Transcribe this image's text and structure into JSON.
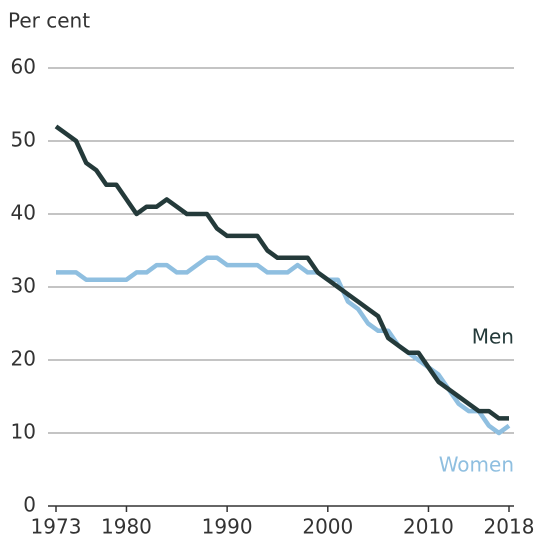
{
  "chart_data": {
    "type": "line",
    "y_label": "Per cent",
    "x": [
      1973,
      1974,
      1975,
      1976,
      1977,
      1978,
      1979,
      1980,
      1981,
      1982,
      1983,
      1984,
      1985,
      1986,
      1987,
      1988,
      1989,
      1990,
      1991,
      1992,
      1993,
      1994,
      1995,
      1996,
      1997,
      1998,
      1999,
      2000,
      2001,
      2002,
      2003,
      2004,
      2005,
      2006,
      2007,
      2008,
      2009,
      2010,
      2011,
      2012,
      2013,
      2014,
      2015,
      2016,
      2017,
      2018
    ],
    "series": [
      {
        "name": "Women",
        "color": "#8fbfe0",
        "values": [
          32,
          32,
          32,
          31,
          31,
          31,
          31,
          31,
          32,
          32,
          33,
          33,
          32,
          32,
          33,
          34,
          34,
          33,
          33,
          33,
          33,
          32,
          32,
          32,
          33,
          32,
          32,
          31,
          31,
          28,
          27,
          25,
          24,
          24,
          22,
          21,
          20,
          19,
          18,
          16,
          14,
          13,
          13,
          11,
          10,
          11
        ]
      },
      {
        "name": "Men",
        "color": "#243a3a",
        "values": [
          52,
          51,
          50,
          47,
          46,
          44,
          44,
          42,
          40,
          41,
          41,
          42,
          41,
          40,
          40,
          40,
          38,
          37,
          37,
          37,
          37,
          35,
          34,
          34,
          34,
          34,
          32,
          31,
          30,
          29,
          28,
          27,
          26,
          23,
          22,
          21,
          21,
          19,
          17,
          16,
          15,
          14,
          13,
          13,
          12,
          12
        ]
      }
    ],
    "xlim": [
      1973,
      2018
    ],
    "xticks": [
      1973,
      1980,
      1990,
      2000,
      2010,
      2018
    ],
    "ylim": [
      0,
      60
    ],
    "yticks": [
      0,
      10,
      20,
      30,
      40,
      50,
      60
    ],
    "grid": true
  }
}
